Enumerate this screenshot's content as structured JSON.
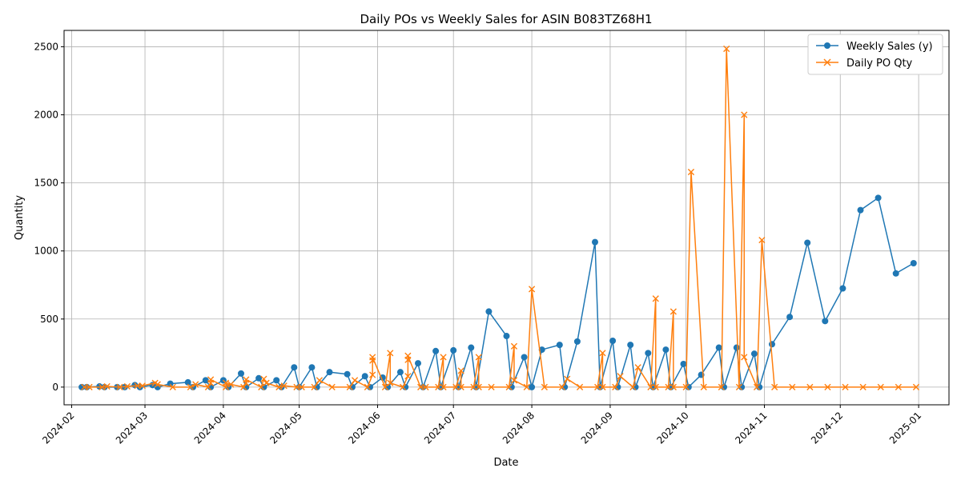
{
  "chart_data": {
    "type": "line",
    "title": "Daily POs vs Weekly Sales for ASIN B083TZ68H1",
    "xlabel": "Date",
    "ylabel": "Quantity",
    "xlim": [
      "2024-01-29",
      "2025-01-13"
    ],
    "ylim": [
      -130,
      2620
    ],
    "x_ticks": [
      "2024-02",
      "2024-03",
      "2024-04",
      "2024-05",
      "2024-06",
      "2024-07",
      "2024-08",
      "2024-09",
      "2024-10",
      "2024-11",
      "2024-12",
      "2025-01"
    ],
    "y_ticks": [
      0,
      500,
      1000,
      1500,
      2000,
      2500
    ],
    "grid": true,
    "legend_position": "top-right",
    "colors": {
      "weekly_sales": "#1f77b4",
      "daily_po": "#ff7f0e"
    },
    "series": [
      {
        "name": "Weekly Sales (y)",
        "marker": "circle",
        "points": [
          [
            "2024-02-05",
            0
          ],
          [
            "2024-02-07",
            0
          ],
          [
            "2024-02-12",
            5
          ],
          [
            "2024-02-14",
            0
          ],
          [
            "2024-02-19",
            0
          ],
          [
            "2024-02-22",
            0
          ],
          [
            "2024-02-26",
            15
          ],
          [
            "2024-02-28",
            0
          ],
          [
            "2024-03-04",
            15
          ],
          [
            "2024-03-06",
            0
          ],
          [
            "2024-03-11",
            25
          ],
          [
            "2024-03-18",
            35
          ],
          [
            "2024-03-20",
            0
          ],
          [
            "2024-03-25",
            50
          ],
          [
            "2024-03-27",
            0
          ],
          [
            "2024-04-01",
            50
          ],
          [
            "2024-04-03",
            0
          ],
          [
            "2024-04-08",
            100
          ],
          [
            "2024-04-10",
            0
          ],
          [
            "2024-04-15",
            65
          ],
          [
            "2024-04-17",
            0
          ],
          [
            "2024-04-22",
            50
          ],
          [
            "2024-04-24",
            0
          ],
          [
            "2024-04-29",
            145
          ],
          [
            "2024-05-01",
            0
          ],
          [
            "2024-05-06",
            145
          ],
          [
            "2024-05-08",
            0
          ],
          [
            "2024-05-13",
            110
          ],
          [
            "2024-05-20",
            95
          ],
          [
            "2024-05-22",
            0
          ],
          [
            "2024-05-27",
            80
          ],
          [
            "2024-05-29",
            0
          ],
          [
            "2024-06-03",
            70
          ],
          [
            "2024-06-05",
            0
          ],
          [
            "2024-06-10",
            110
          ],
          [
            "2024-06-12",
            0
          ],
          [
            "2024-06-17",
            175
          ],
          [
            "2024-06-19",
            0
          ],
          [
            "2024-06-24",
            265
          ],
          [
            "2024-06-26",
            0
          ],
          [
            "2024-07-01",
            270
          ],
          [
            "2024-07-03",
            0
          ],
          [
            "2024-07-08",
            290
          ],
          [
            "2024-07-10",
            0
          ],
          [
            "2024-07-15",
            555
          ],
          [
            "2024-07-22",
            375
          ],
          [
            "2024-07-24",
            0
          ],
          [
            "2024-07-29",
            220
          ],
          [
            "2024-08-01",
            0
          ],
          [
            "2024-08-05",
            275
          ],
          [
            "2024-08-12",
            310
          ],
          [
            "2024-08-14",
            0
          ],
          [
            "2024-08-19",
            335
          ],
          [
            "2024-08-26",
            1065
          ],
          [
            "2024-08-28",
            0
          ],
          [
            "2024-09-02",
            340
          ],
          [
            "2024-09-04",
            0
          ],
          [
            "2024-09-09",
            310
          ],
          [
            "2024-09-11",
            0
          ],
          [
            "2024-09-16",
            250
          ],
          [
            "2024-09-18",
            0
          ],
          [
            "2024-09-23",
            275
          ],
          [
            "2024-09-25",
            0
          ],
          [
            "2024-09-30",
            170
          ],
          [
            "2024-10-02",
            0
          ],
          [
            "2024-10-07",
            90
          ],
          [
            "2024-10-14",
            290
          ],
          [
            "2024-10-16",
            0
          ],
          [
            "2024-10-21",
            290
          ],
          [
            "2024-10-23",
            0
          ],
          [
            "2024-10-28",
            245
          ],
          [
            "2024-10-30",
            0
          ],
          [
            "2024-11-04",
            315
          ],
          [
            "2024-11-11",
            515
          ],
          [
            "2024-11-18",
            1060
          ],
          [
            "2024-11-25",
            485
          ],
          [
            "2024-12-02",
            725
          ],
          [
            "2024-12-09",
            1300
          ],
          [
            "2024-12-16",
            1390
          ],
          [
            "2024-12-23",
            835
          ],
          [
            "2024-12-30",
            910
          ]
        ]
      },
      {
        "name": "Daily PO Qty",
        "marker": "x",
        "points": [
          [
            "2024-02-06",
            0
          ],
          [
            "2024-02-08",
            0
          ],
          [
            "2024-02-13",
            0
          ],
          [
            "2024-02-15",
            5
          ],
          [
            "2024-02-20",
            0
          ],
          [
            "2024-02-23",
            5
          ],
          [
            "2024-02-27",
            10
          ],
          [
            "2024-02-29",
            10
          ],
          [
            "2024-03-05",
            30
          ],
          [
            "2024-03-06",
            20
          ],
          [
            "2024-03-12",
            0
          ],
          [
            "2024-03-19",
            0
          ],
          [
            "2024-03-21",
            20
          ],
          [
            "2024-03-26",
            0
          ],
          [
            "2024-03-27",
            30
          ],
          [
            "2024-03-27",
            55
          ],
          [
            "2024-04-02",
            0
          ],
          [
            "2024-04-02",
            30
          ],
          [
            "2024-04-04",
            20
          ],
          [
            "2024-04-09",
            0
          ],
          [
            "2024-04-10",
            30
          ],
          [
            "2024-04-10",
            55
          ],
          [
            "2024-04-16",
            0
          ],
          [
            "2024-04-17",
            60
          ],
          [
            "2024-04-18",
            30
          ],
          [
            "2024-04-23",
            0
          ],
          [
            "2024-04-25",
            10
          ],
          [
            "2024-04-30",
            0
          ],
          [
            "2024-05-02",
            0
          ],
          [
            "2024-05-07",
            0
          ],
          [
            "2024-05-09",
            50
          ],
          [
            "2024-05-14",
            0
          ],
          [
            "2024-05-21",
            0
          ],
          [
            "2024-05-23",
            50
          ],
          [
            "2024-05-28",
            0
          ],
          [
            "2024-05-30",
            90
          ],
          [
            "2024-05-30",
            195
          ],
          [
            "2024-05-30",
            220
          ],
          [
            "2024-06-04",
            0
          ],
          [
            "2024-06-06",
            250
          ],
          [
            "2024-06-06",
            30
          ],
          [
            "2024-06-11",
            0
          ],
          [
            "2024-06-13",
            80
          ],
          [
            "2024-06-13",
            200
          ],
          [
            "2024-06-13",
            230
          ],
          [
            "2024-06-18",
            0
          ],
          [
            "2024-06-20",
            0
          ],
          [
            "2024-06-25",
            0
          ],
          [
            "2024-06-27",
            220
          ],
          [
            "2024-06-27",
            0
          ],
          [
            "2024-07-02",
            0
          ],
          [
            "2024-07-04",
            120
          ],
          [
            "2024-07-04",
            0
          ],
          [
            "2024-07-09",
            0
          ],
          [
            "2024-07-11",
            220
          ],
          [
            "2024-07-11",
            0
          ],
          [
            "2024-07-16",
            0
          ],
          [
            "2024-07-23",
            0
          ],
          [
            "2024-07-25",
            300
          ],
          [
            "2024-07-25",
            50
          ],
          [
            "2024-07-30",
            0
          ],
          [
            "2024-08-01",
            720
          ],
          [
            "2024-08-06",
            0
          ],
          [
            "2024-08-13",
            0
          ],
          [
            "2024-08-15",
            60
          ],
          [
            "2024-08-20",
            0
          ],
          [
            "2024-08-27",
            0
          ],
          [
            "2024-08-29",
            250
          ],
          [
            "2024-08-29",
            0
          ],
          [
            "2024-09-03",
            0
          ],
          [
            "2024-09-05",
            80
          ],
          [
            "2024-09-10",
            0
          ],
          [
            "2024-09-12",
            145
          ],
          [
            "2024-09-17",
            0
          ],
          [
            "2024-09-19",
            650
          ],
          [
            "2024-09-19",
            0
          ],
          [
            "2024-09-24",
            0
          ],
          [
            "2024-09-26",
            555
          ],
          [
            "2024-09-26",
            0
          ],
          [
            "2024-10-01",
            0
          ],
          [
            "2024-10-03",
            1580
          ],
          [
            "2024-10-08",
            0
          ],
          [
            "2024-10-15",
            0
          ],
          [
            "2024-10-17",
            2485
          ],
          [
            "2024-10-22",
            0
          ],
          [
            "2024-10-24",
            2000
          ],
          [
            "2024-10-24",
            220
          ],
          [
            "2024-10-29",
            0
          ],
          [
            "2024-10-31",
            1080
          ],
          [
            "2024-11-05",
            0
          ],
          [
            "2024-11-12",
            0
          ],
          [
            "2024-11-19",
            0
          ],
          [
            "2024-11-26",
            0
          ],
          [
            "2024-12-03",
            0
          ],
          [
            "2024-12-10",
            0
          ],
          [
            "2024-12-17",
            0
          ],
          [
            "2024-12-24",
            0
          ],
          [
            "2024-12-31",
            0
          ]
        ]
      }
    ]
  }
}
